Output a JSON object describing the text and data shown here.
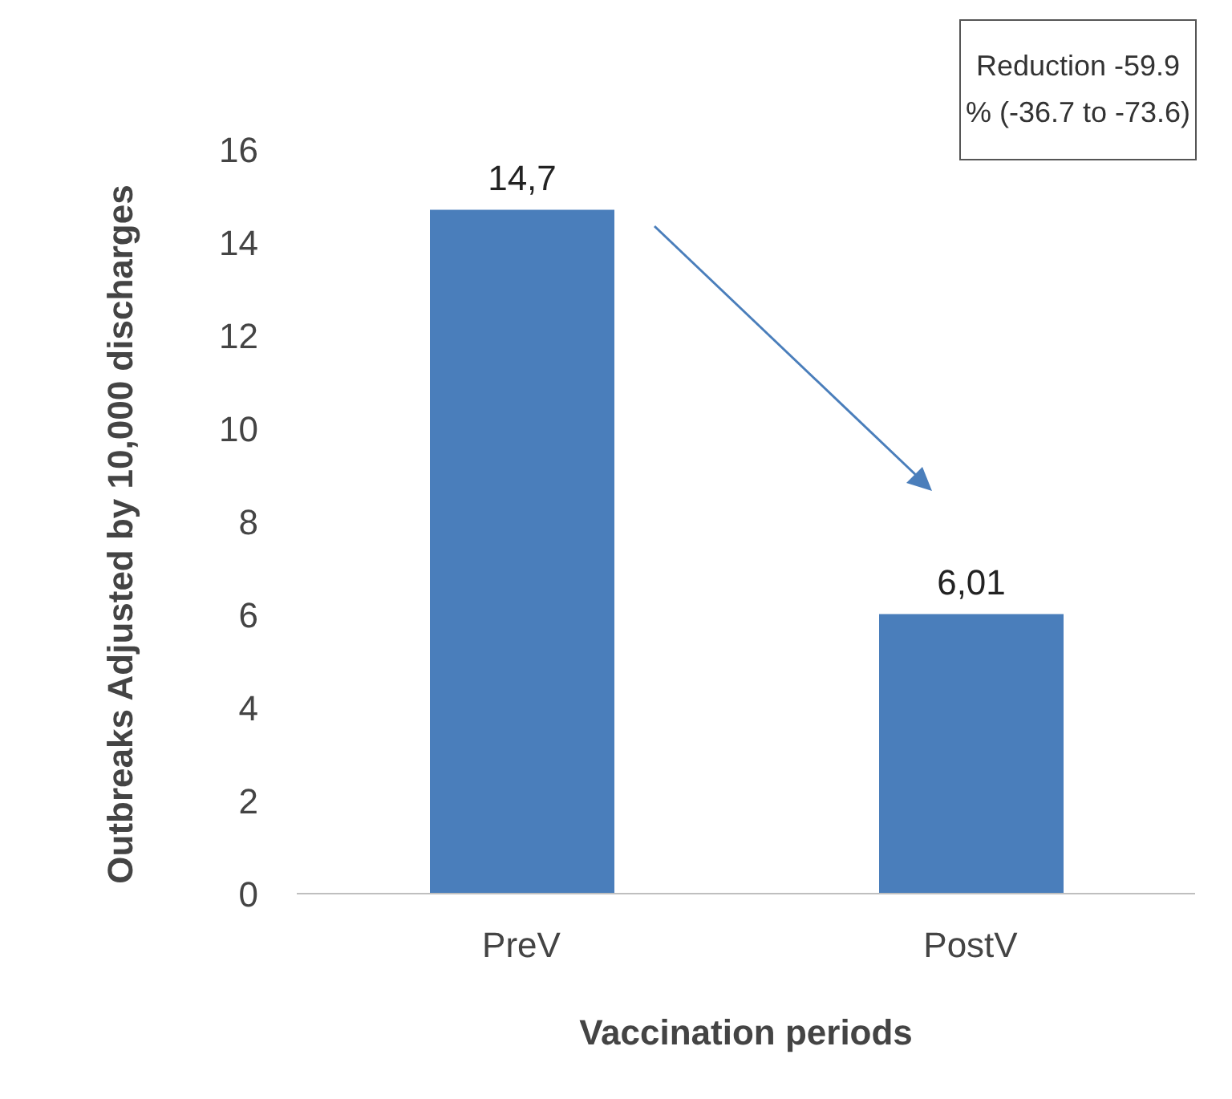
{
  "chart_data": {
    "type": "bar",
    "categories": [
      "PreV",
      "PostV"
    ],
    "values": [
      14.7,
      6.01
    ],
    "value_labels": [
      "14,7",
      "6,01"
    ],
    "color": "#4a7ebb",
    "ylim": [
      0,
      16
    ],
    "yticks": [
      0,
      2,
      4,
      6,
      8,
      10,
      12,
      14,
      16
    ],
    "grid": false,
    "legend": false,
    "xlabel": "Vaccination periods",
    "ylabel": "Outbreaks Adjusted by 10,000 discharges",
    "annotations": [
      "Reduction -59.9 % (-36.7 to -73.6)"
    ]
  }
}
